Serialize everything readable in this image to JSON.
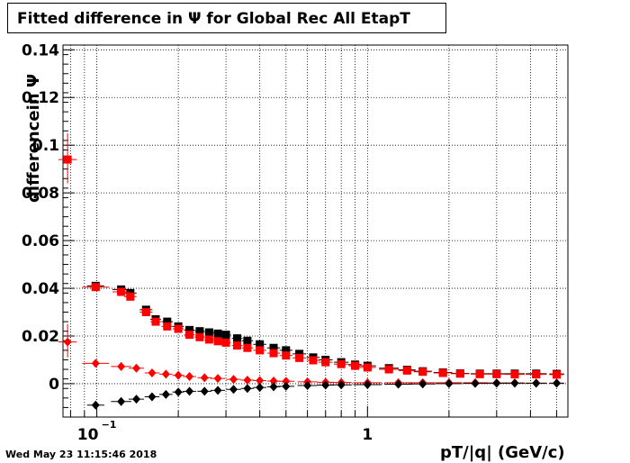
{
  "title": "Fitted difference in  Ψ  for Global Rec All EtapT",
  "timestamp": "Wed May 23 11:15:46 2018",
  "chart_data": {
    "type": "scatter",
    "title": "Fitted difference in  Ψ  for Global Rec All EtapT",
    "xlabel": "pT/|q| (GeV/c)",
    "ylabel": "differencein  Ψ",
    "x_scale": "log",
    "xlim": [
      0.075,
      5.5
    ],
    "ylim": [
      -0.014,
      0.142
    ],
    "grid": true,
    "x_ticks": [
      {
        "value": 0.1,
        "label": "10",
        "sup": "−1"
      },
      {
        "value": 1,
        "label": "1",
        "sup": ""
      }
    ],
    "y_ticks": [
      {
        "value": 0,
        "label": "0"
      },
      {
        "value": 0.02,
        "label": "0.02"
      },
      {
        "value": 0.04,
        "label": "0.04"
      },
      {
        "value": 0.06,
        "label": "0.06"
      },
      {
        "value": 0.08,
        "label": "0.08"
      },
      {
        "value": 0.1,
        "label": "0.1"
      },
      {
        "value": 0.12,
        "label": "0.12"
      },
      {
        "value": 0.14,
        "label": "0.14"
      }
    ],
    "series": [
      {
        "marker": "square",
        "color": "#000000",
        "points": [
          [
            0.099,
            0.041
          ],
          [
            0.123,
            0.0395
          ],
          [
            0.133,
            0.038
          ],
          [
            0.152,
            0.031
          ],
          [
            0.165,
            0.027
          ],
          [
            0.182,
            0.026
          ],
          [
            0.2,
            0.024
          ],
          [
            0.22,
            0.0225
          ],
          [
            0.24,
            0.022
          ],
          [
            0.26,
            0.0215
          ],
          [
            0.28,
            0.021
          ],
          [
            0.3,
            0.0205
          ],
          [
            0.33,
            0.019
          ],
          [
            0.36,
            0.018
          ],
          [
            0.4,
            0.0165
          ],
          [
            0.45,
            0.015
          ],
          [
            0.5,
            0.014
          ],
          [
            0.56,
            0.0125
          ],
          [
            0.63,
            0.011
          ],
          [
            0.7,
            0.01
          ],
          [
            0.8,
            0.009
          ],
          [
            0.9,
            0.008
          ],
          [
            1.0,
            0.0075
          ],
          [
            1.2,
            0.0065
          ],
          [
            1.4,
            0.0058
          ],
          [
            1.6,
            0.0052
          ],
          [
            1.9,
            0.0047
          ],
          [
            2.2,
            0.0043
          ],
          [
            2.6,
            0.0042
          ],
          [
            3.0,
            0.0042
          ],
          [
            3.5,
            0.0042
          ],
          [
            4.2,
            0.0042
          ],
          [
            5.0,
            0.0041
          ]
        ]
      },
      {
        "marker": "square",
        "color": "#ff0000",
        "points": [
          [
            0.078,
            0.094
          ],
          [
            0.099,
            0.0405
          ],
          [
            0.123,
            0.0385
          ],
          [
            0.133,
            0.0365
          ],
          [
            0.152,
            0.03
          ],
          [
            0.165,
            0.026
          ],
          [
            0.182,
            0.024
          ],
          [
            0.2,
            0.023
          ],
          [
            0.22,
            0.0205
          ],
          [
            0.24,
            0.0195
          ],
          [
            0.26,
            0.0185
          ],
          [
            0.28,
            0.0178
          ],
          [
            0.3,
            0.0172
          ],
          [
            0.33,
            0.016
          ],
          [
            0.36,
            0.015
          ],
          [
            0.4,
            0.014
          ],
          [
            0.45,
            0.0128
          ],
          [
            0.5,
            0.0118
          ],
          [
            0.56,
            0.0108
          ],
          [
            0.63,
            0.0098
          ],
          [
            0.7,
            0.009
          ],
          [
            0.8,
            0.0082
          ],
          [
            0.9,
            0.0075
          ],
          [
            1.0,
            0.0068
          ],
          [
            1.2,
            0.006
          ],
          [
            1.4,
            0.0055
          ],
          [
            1.6,
            0.005
          ],
          [
            1.9,
            0.0045
          ],
          [
            2.2,
            0.0042
          ],
          [
            2.6,
            0.004
          ],
          [
            3.0,
            0.004
          ],
          [
            3.5,
            0.0039
          ],
          [
            4.2,
            0.0039
          ],
          [
            5.0,
            0.0038
          ]
        ]
      },
      {
        "marker": "diamond",
        "color": "#ff0000",
        "points": [
          [
            0.078,
            0.0175
          ],
          [
            0.099,
            0.0085
          ],
          [
            0.123,
            0.0072
          ],
          [
            0.14,
            0.0065
          ],
          [
            0.16,
            0.0045
          ],
          [
            0.18,
            0.004
          ],
          [
            0.2,
            0.0035
          ],
          [
            0.22,
            0.003
          ],
          [
            0.25,
            0.0025
          ],
          [
            0.28,
            0.0022
          ],
          [
            0.32,
            0.0018
          ],
          [
            0.36,
            0.0015
          ],
          [
            0.4,
            0.0013
          ],
          [
            0.45,
            0.0011
          ],
          [
            0.5,
            0.001
          ],
          [
            0.6,
            0.0008
          ],
          [
            0.7,
            0.0006
          ],
          [
            0.8,
            0.0005
          ],
          [
            1.0,
            0.0004
          ],
          [
            1.3,
            0.0004
          ],
          [
            1.6,
            0.0004
          ],
          [
            2.0,
            0.0004
          ],
          [
            2.5,
            0.0004
          ],
          [
            3.0,
            0.0003
          ],
          [
            3.5,
            0.0003
          ],
          [
            4.2,
            0.0002
          ],
          [
            5.0,
            0.0002
          ]
        ]
      },
      {
        "marker": "diamond",
        "color": "#000000",
        "points": [
          [
            0.099,
            -0.009
          ],
          [
            0.123,
            -0.0075
          ],
          [
            0.14,
            -0.0065
          ],
          [
            0.16,
            -0.0055
          ],
          [
            0.18,
            -0.0045
          ],
          [
            0.2,
            -0.0035
          ],
          [
            0.22,
            -0.0032
          ],
          [
            0.25,
            -0.0032
          ],
          [
            0.28,
            -0.0028
          ],
          [
            0.32,
            -0.0024
          ],
          [
            0.36,
            -0.002
          ],
          [
            0.4,
            -0.0016
          ],
          [
            0.45,
            -0.0013
          ],
          [
            0.5,
            -0.0011
          ],
          [
            0.6,
            -0.0008
          ],
          [
            0.7,
            -0.0006
          ],
          [
            0.8,
            -0.0005
          ],
          [
            1.0,
            -0.0004
          ],
          [
            1.3,
            -0.0002
          ],
          [
            1.6,
            -0.0001
          ],
          [
            2.0,
            0.0
          ],
          [
            2.5,
            0.0001
          ],
          [
            3.0,
            0.0002
          ],
          [
            3.5,
            0.0002
          ],
          [
            4.2,
            0.0002
          ],
          [
            5.0,
            0.0002
          ]
        ]
      }
    ]
  }
}
